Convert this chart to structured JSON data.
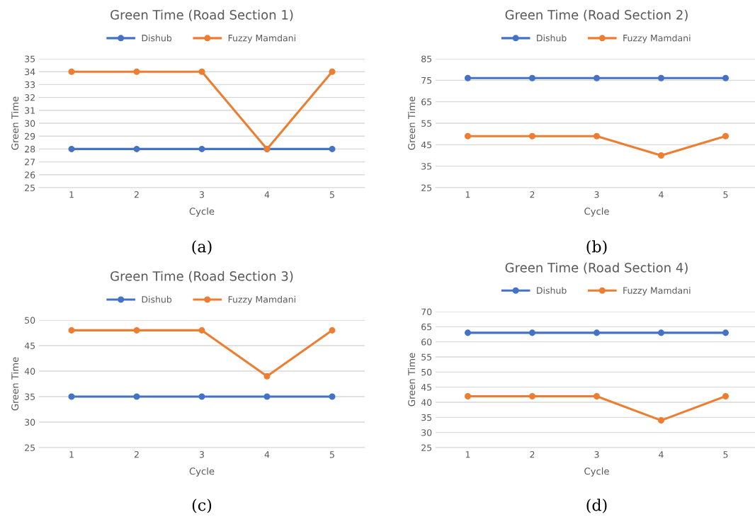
{
  "chart_data": [
    {
      "type": "line",
      "title": "Green Time (Road Section 1)",
      "xlabel": "Cycle",
      "ylabel": "Green Time",
      "categories": [
        "1",
        "2",
        "3",
        "4",
        "5"
      ],
      "series": [
        {
          "name": "Dishub",
          "color": "#4472c4",
          "values": [
            28,
            28,
            28,
            28,
            28
          ]
        },
        {
          "name": "Fuzzy Mamdani",
          "color": "#ed7d31",
          "values": [
            34,
            34,
            34,
            28,
            34
          ]
        }
      ],
      "ylim": [
        25,
        35
      ],
      "yticks": [
        25,
        26,
        27,
        28,
        29,
        30,
        31,
        32,
        33,
        34,
        35
      ],
      "grid": "y",
      "legend": "top",
      "marker": "circle",
      "line_style": "solid",
      "annotations": [
        "(a)"
      ]
    },
    {
      "type": "line",
      "title": "Green Time (Road Section 2)",
      "xlabel": "Cycle",
      "ylabel": "Green Time",
      "categories": [
        "1",
        "2",
        "3",
        "4",
        "5"
      ],
      "series": [
        {
          "name": "Dishub",
          "color": "#4472c4",
          "values": [
            76,
            76,
            76,
            76,
            76
          ]
        },
        {
          "name": "Fuzzy Mamdani",
          "color": "#ed7d31",
          "values": [
            49,
            49,
            49,
            40,
            49
          ]
        }
      ],
      "ylim": [
        25,
        85
      ],
      "yticks": [
        25,
        35,
        45,
        55,
        65,
        75,
        85
      ],
      "grid": "y",
      "legend": "top",
      "marker": "circle",
      "line_style": "solid",
      "annotations": [
        "(b)"
      ]
    },
    {
      "type": "line",
      "title": "Green Time (Road Section 3)",
      "xlabel": "Cycle",
      "ylabel": "Green Time",
      "categories": [
        "1",
        "2",
        "3",
        "4",
        "5"
      ],
      "series": [
        {
          "name": "Dishub",
          "color": "#4472c4",
          "values": [
            35,
            35,
            35,
            35,
            35
          ]
        },
        {
          "name": "Fuzzy Mamdani",
          "color": "#ed7d31",
          "values": [
            48,
            48,
            48,
            39,
            48
          ]
        }
      ],
      "ylim": [
        25,
        50
      ],
      "yticks": [
        25,
        30,
        35,
        40,
        45,
        50
      ],
      "grid": "y",
      "legend": "top",
      "marker": "circle",
      "line_style": "solid",
      "annotations": [
        "(c)"
      ]
    },
    {
      "type": "line",
      "title": "Green Time (Road Section 4)",
      "xlabel": "Cycle",
      "ylabel": "Green Time",
      "categories": [
        "1",
        "2",
        "3",
        "4",
        "5"
      ],
      "series": [
        {
          "name": "Dishub",
          "color": "#4472c4",
          "values": [
            63,
            63,
            63,
            63,
            63
          ]
        },
        {
          "name": "Fuzzy Mamdani",
          "color": "#ed7d31",
          "values": [
            42,
            42,
            42,
            34,
            42
          ]
        }
      ],
      "ylim": [
        25,
        70
      ],
      "yticks": [
        25,
        30,
        35,
        40,
        45,
        50,
        55,
        60,
        65,
        70
      ],
      "grid": "y",
      "legend": "top",
      "marker": "circle",
      "line_style": "solid",
      "annotations": [
        "(d)"
      ]
    }
  ]
}
